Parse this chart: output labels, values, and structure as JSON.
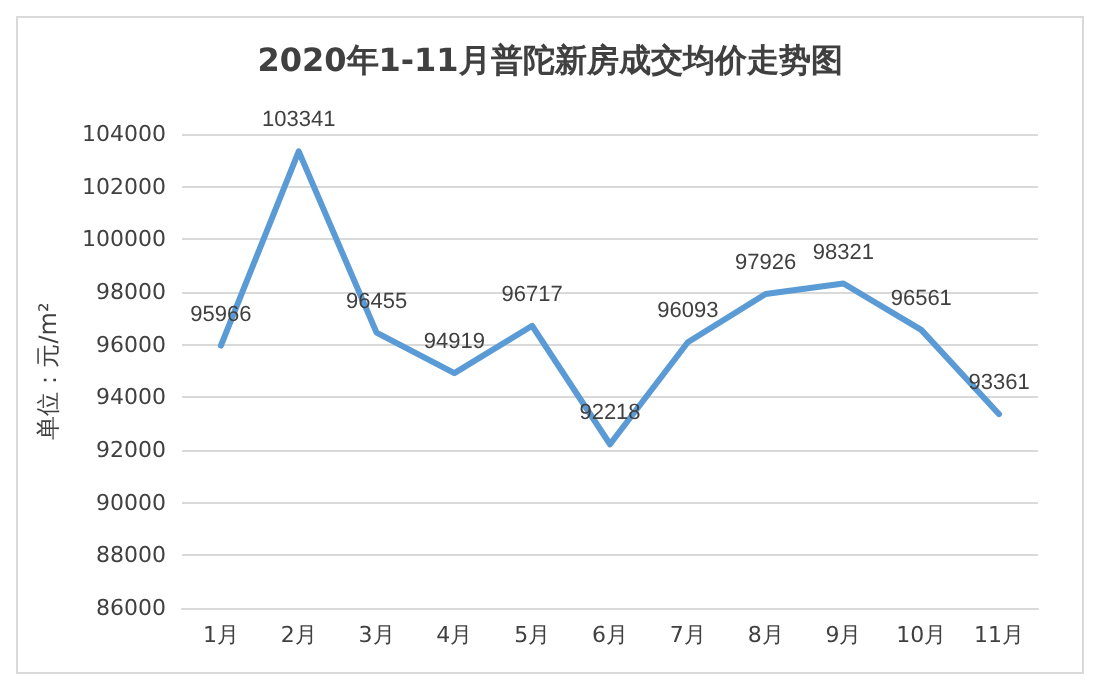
{
  "chart_data": {
    "type": "line",
    "title": "2020年1-11月普陀新房成交均价走势图",
    "ylabel": "单位：元/m²",
    "categories": [
      "1月",
      "2月",
      "3月",
      "4月",
      "5月",
      "6月",
      "7月",
      "8月",
      "9月",
      "10月",
      "11月"
    ],
    "series": [
      {
        "color": "#5b9bd5",
        "values": [
          95966,
          103341,
          96455,
          94919,
          96717,
          92218,
          96093,
          97926,
          98321,
          96561,
          93361
        ]
      }
    ],
    "ylim": [
      86000,
      104000
    ],
    "yticks": [
      86000,
      88000,
      90000,
      92000,
      94000,
      96000,
      98000,
      100000,
      102000,
      104000
    ],
    "grid": "y",
    "marker": "none",
    "line_style": "solid",
    "data_labels": true
  }
}
